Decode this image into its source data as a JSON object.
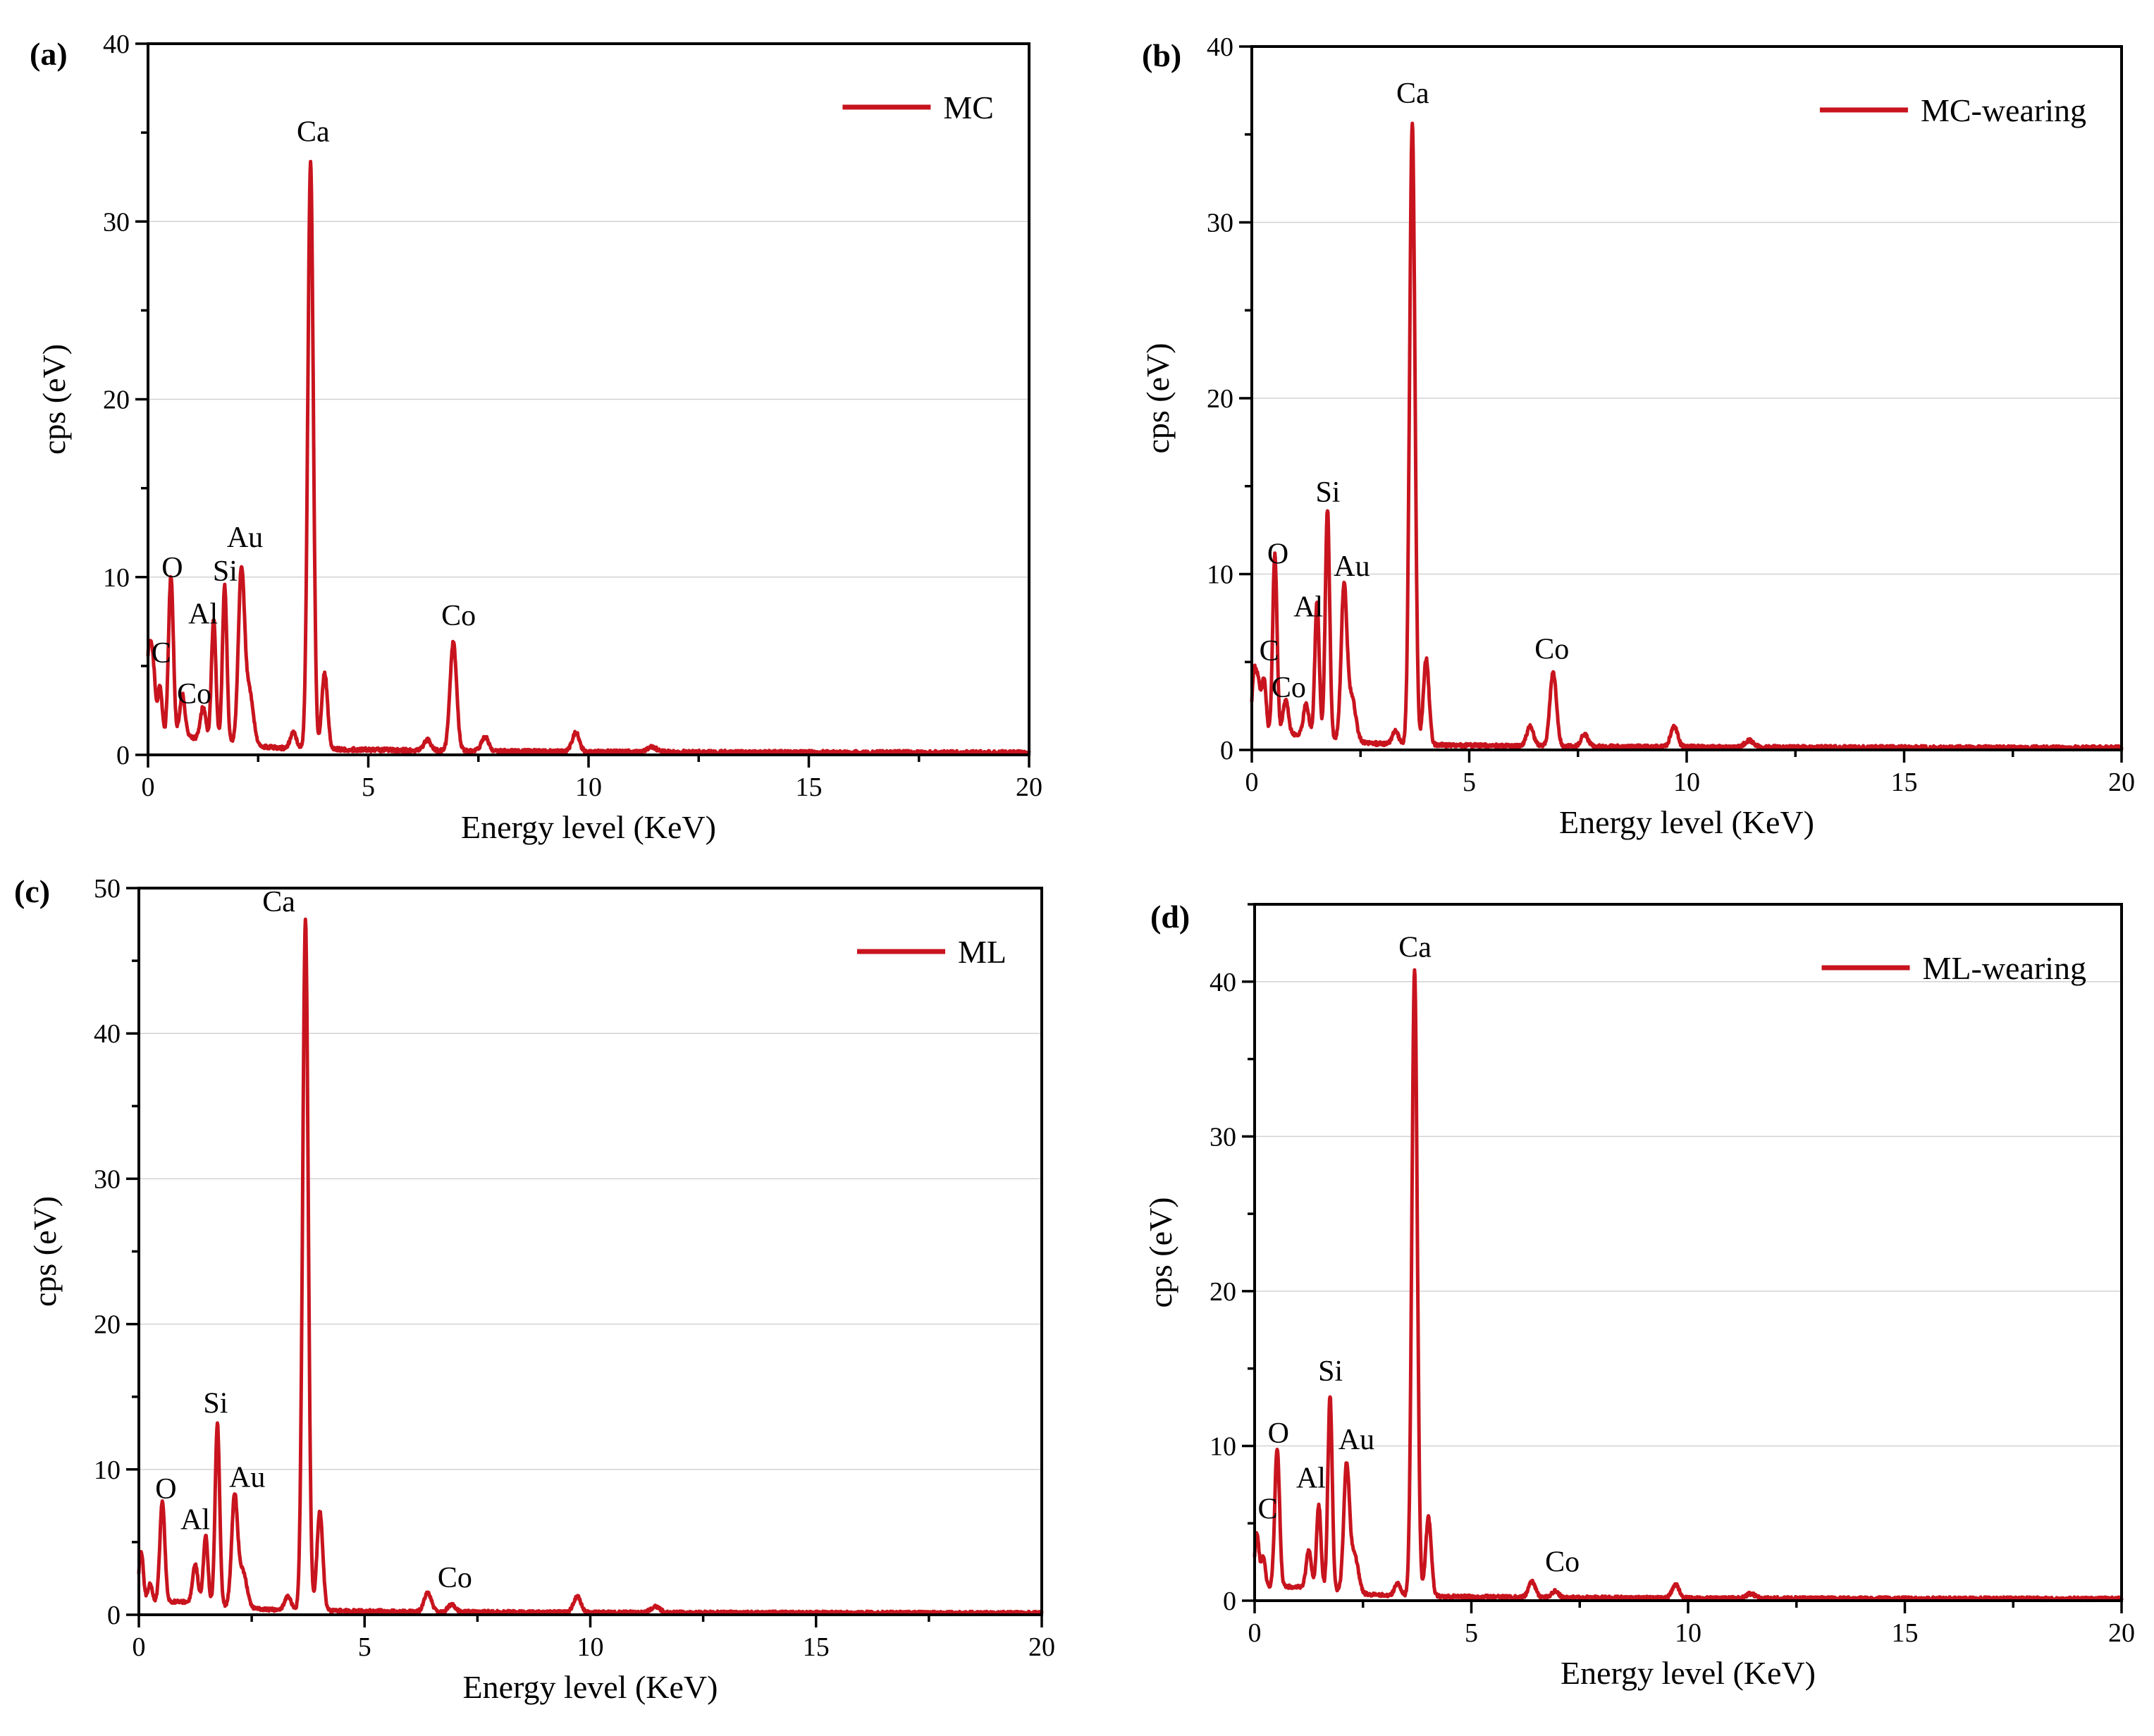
{
  "colors": {
    "series": "#c8141e",
    "frame": "#000000",
    "grid": "#d2d2d2"
  },
  "chart_data": [
    {
      "panel": "(a)",
      "type": "line",
      "legend": "MC",
      "xlabel": "Energy level (KeV)",
      "ylabel": "cps (eV)",
      "xlim": [
        0,
        20
      ],
      "ylim": [
        0,
        40
      ],
      "xticks": [
        0,
        5,
        10,
        15,
        20
      ],
      "yticks": [
        0,
        10,
        20,
        30,
        40
      ],
      "grid": true,
      "baseline": 0.5,
      "peaks": [
        {
          "x": 0.02,
          "y": 4.9,
          "w": 0.06
        },
        {
          "x": 0.12,
          "y": 3.3,
          "w": 0.05
        },
        {
          "x": 0.27,
          "y": 2.9,
          "w": 0.05
        },
        {
          "x": 0.52,
          "y": 9.1,
          "w": 0.055
        },
        {
          "x": 0.78,
          "y": 2.4,
          "w": 0.06
        },
        {
          "x": 1.25,
          "y": 1.8,
          "w": 0.06
        },
        {
          "x": 1.49,
          "y": 6.8,
          "w": 0.05
        },
        {
          "x": 1.74,
          "y": 8.8,
          "w": 0.05
        },
        {
          "x": 2.12,
          "y": 9.6,
          "w": 0.07
        },
        {
          "x": 2.3,
          "y": 3.0,
          "w": 0.09
        },
        {
          "x": 3.3,
          "y": 0.9,
          "w": 0.07
        },
        {
          "x": 3.69,
          "y": 33.0,
          "w": 0.062
        },
        {
          "x": 4.01,
          "y": 4.3,
          "w": 0.065
        },
        {
          "x": 6.34,
          "y": 0.6,
          "w": 0.08
        },
        {
          "x": 6.93,
          "y": 6.1,
          "w": 0.075
        },
        {
          "x": 7.65,
          "y": 0.8,
          "w": 0.08
        },
        {
          "x": 9.71,
          "y": 1.1,
          "w": 0.08
        },
        {
          "x": 11.44,
          "y": 0.3,
          "w": 0.1
        }
      ],
      "labels": [
        {
          "text": "C",
          "x": 0.3,
          "y": 5.2
        },
        {
          "text": "O",
          "x": 0.55,
          "y": 10.0
        },
        {
          "text": "Co",
          "x": 1.05,
          "y": 2.9
        },
        {
          "text": "Al",
          "x": 1.25,
          "y": 7.4
        },
        {
          "text": "Si",
          "x": 1.75,
          "y": 9.8
        },
        {
          "text": "Au",
          "x": 2.2,
          "y": 11.7
        },
        {
          "text": "Ca",
          "x": 3.75,
          "y": 34.5
        },
        {
          "text": "Co",
          "x": 7.05,
          "y": 7.3
        }
      ]
    },
    {
      "panel": "(b)",
      "type": "line",
      "legend": "MC-wearing",
      "xlabel": "Energy level (KeV)",
      "ylabel": "cps (eV)",
      "xlim": [
        0,
        20
      ],
      "ylim": [
        0,
        40
      ],
      "xticks": [
        0,
        5,
        10,
        15,
        20
      ],
      "yticks": [
        0,
        10,
        20,
        30,
        40
      ],
      "grid": true,
      "baseline": 0.4,
      "peaks": [
        {
          "x": 0.05,
          "y": 3.4,
          "w": 0.05
        },
        {
          "x": 0.15,
          "y": 2.8,
          "w": 0.05
        },
        {
          "x": 0.28,
          "y": 3.2,
          "w": 0.05
        },
        {
          "x": 0.53,
          "y": 10.2,
          "w": 0.05
        },
        {
          "x": 0.78,
          "y": 2.0,
          "w": 0.06
        },
        {
          "x": 1.25,
          "y": 1.8,
          "w": 0.06
        },
        {
          "x": 1.5,
          "y": 7.7,
          "w": 0.05
        },
        {
          "x": 1.74,
          "y": 13.0,
          "w": 0.05
        },
        {
          "x": 2.12,
          "y": 8.7,
          "w": 0.065
        },
        {
          "x": 2.3,
          "y": 2.5,
          "w": 0.09
        },
        {
          "x": 3.3,
          "y": 0.8,
          "w": 0.07
        },
        {
          "x": 3.69,
          "y": 35.4,
          "w": 0.062
        },
        {
          "x": 4.01,
          "y": 4.9,
          "w": 0.065
        },
        {
          "x": 6.4,
          "y": 1.1,
          "w": 0.08
        },
        {
          "x": 6.93,
          "y": 4.2,
          "w": 0.075
        },
        {
          "x": 7.65,
          "y": 0.7,
          "w": 0.08
        },
        {
          "x": 9.71,
          "y": 1.2,
          "w": 0.08
        },
        {
          "x": 11.44,
          "y": 0.4,
          "w": 0.1
        }
      ],
      "labels": [
        {
          "text": "C",
          "x": 0.4,
          "y": 5.1
        },
        {
          "text": "O",
          "x": 0.6,
          "y": 10.6
        },
        {
          "text": "Co",
          "x": 0.85,
          "y": 3.0
        },
        {
          "text": "Al",
          "x": 1.3,
          "y": 7.6
        },
        {
          "text": "Si",
          "x": 1.75,
          "y": 14.1
        },
        {
          "text": "Au",
          "x": 2.3,
          "y": 9.9
        },
        {
          "text": "Ca",
          "x": 3.7,
          "y": 36.8
        },
        {
          "text": "Co",
          "x": 6.9,
          "y": 5.2
        }
      ]
    },
    {
      "panel": "(c)",
      "type": "line",
      "legend": "ML",
      "xlabel": "Energy level (KeV)",
      "ylabel": "cps (eV)",
      "xlim": [
        0,
        20
      ],
      "ylim": [
        0,
        50
      ],
      "xticks": [
        0,
        5,
        10,
        15,
        20
      ],
      "yticks": [
        0,
        10,
        20,
        30,
        40,
        50
      ],
      "grid": true,
      "baseline": 0.4,
      "peaks": [
        {
          "x": 0.05,
          "y": 3.6,
          "w": 0.05
        },
        {
          "x": 0.25,
          "y": 1.3,
          "w": 0.05
        },
        {
          "x": 0.52,
          "y": 6.9,
          "w": 0.055
        },
        {
          "x": 1.25,
          "y": 2.6,
          "w": 0.06
        },
        {
          "x": 1.48,
          "y": 4.7,
          "w": 0.05
        },
        {
          "x": 1.74,
          "y": 12.5,
          "w": 0.05
        },
        {
          "x": 2.12,
          "y": 7.5,
          "w": 0.065
        },
        {
          "x": 2.3,
          "y": 2.5,
          "w": 0.09
        },
        {
          "x": 3.3,
          "y": 1.0,
          "w": 0.07
        },
        {
          "x": 3.69,
          "y": 47.5,
          "w": 0.062
        },
        {
          "x": 4.01,
          "y": 6.8,
          "w": 0.065
        },
        {
          "x": 6.4,
          "y": 1.3,
          "w": 0.08
        },
        {
          "x": 6.93,
          "y": 0.5,
          "w": 0.08
        },
        {
          "x": 9.71,
          "y": 1.1,
          "w": 0.08
        },
        {
          "x": 11.44,
          "y": 0.4,
          "w": 0.1
        }
      ],
      "labels": [
        {
          "text": "O",
          "x": 0.6,
          "y": 8.0
        },
        {
          "text": "Al",
          "x": 1.25,
          "y": 5.9
        },
        {
          "text": "Si",
          "x": 1.7,
          "y": 13.9
        },
        {
          "text": "Au",
          "x": 2.4,
          "y": 8.8
        },
        {
          "text": "Ca",
          "x": 3.1,
          "y": 48.4
        },
        {
          "text": "Co",
          "x": 7.0,
          "y": 1.9
        }
      ]
    },
    {
      "panel": "(d)",
      "type": "line",
      "legend": "ML-wearing",
      "xlabel": "Energy level (KeV)",
      "ylabel": "cps (eV)",
      "xlim": [
        0,
        20
      ],
      "ylim": [
        0,
        45
      ],
      "xticks": [
        0,
        5,
        10,
        15,
        20
      ],
      "yticks": [
        0,
        10,
        20,
        30,
        40
      ],
      "grid": true,
      "baseline": 0.4,
      "peaks": [
        {
          "x": 0.05,
          "y": 3.6,
          "w": 0.05
        },
        {
          "x": 0.2,
          "y": 2.0,
          "w": 0.05
        },
        {
          "x": 0.52,
          "y": 9.0,
          "w": 0.055
        },
        {
          "x": 1.25,
          "y": 2.4,
          "w": 0.06
        },
        {
          "x": 1.48,
          "y": 5.4,
          "w": 0.05
        },
        {
          "x": 1.74,
          "y": 12.6,
          "w": 0.05
        },
        {
          "x": 2.12,
          "y": 8.1,
          "w": 0.065
        },
        {
          "x": 2.3,
          "y": 2.5,
          "w": 0.09
        },
        {
          "x": 3.3,
          "y": 0.8,
          "w": 0.07
        },
        {
          "x": 3.69,
          "y": 40.5,
          "w": 0.062
        },
        {
          "x": 4.01,
          "y": 5.1,
          "w": 0.065
        },
        {
          "x": 6.4,
          "y": 1.0,
          "w": 0.08
        },
        {
          "x": 6.93,
          "y": 0.4,
          "w": 0.08
        },
        {
          "x": 9.71,
          "y": 0.9,
          "w": 0.08
        },
        {
          "x": 11.44,
          "y": 0.3,
          "w": 0.1
        }
      ],
      "labels": [
        {
          "text": "C",
          "x": 0.3,
          "y": 5.3
        },
        {
          "text": "O",
          "x": 0.55,
          "y": 10.2
        },
        {
          "text": "Al",
          "x": 1.3,
          "y": 7.3
        },
        {
          "text": "Si",
          "x": 1.75,
          "y": 14.2
        },
        {
          "text": "Au",
          "x": 2.35,
          "y": 9.8
        },
        {
          "text": "Ca",
          "x": 3.7,
          "y": 41.6
        },
        {
          "text": "Co",
          "x": 7.1,
          "y": 1.9
        }
      ]
    }
  ]
}
